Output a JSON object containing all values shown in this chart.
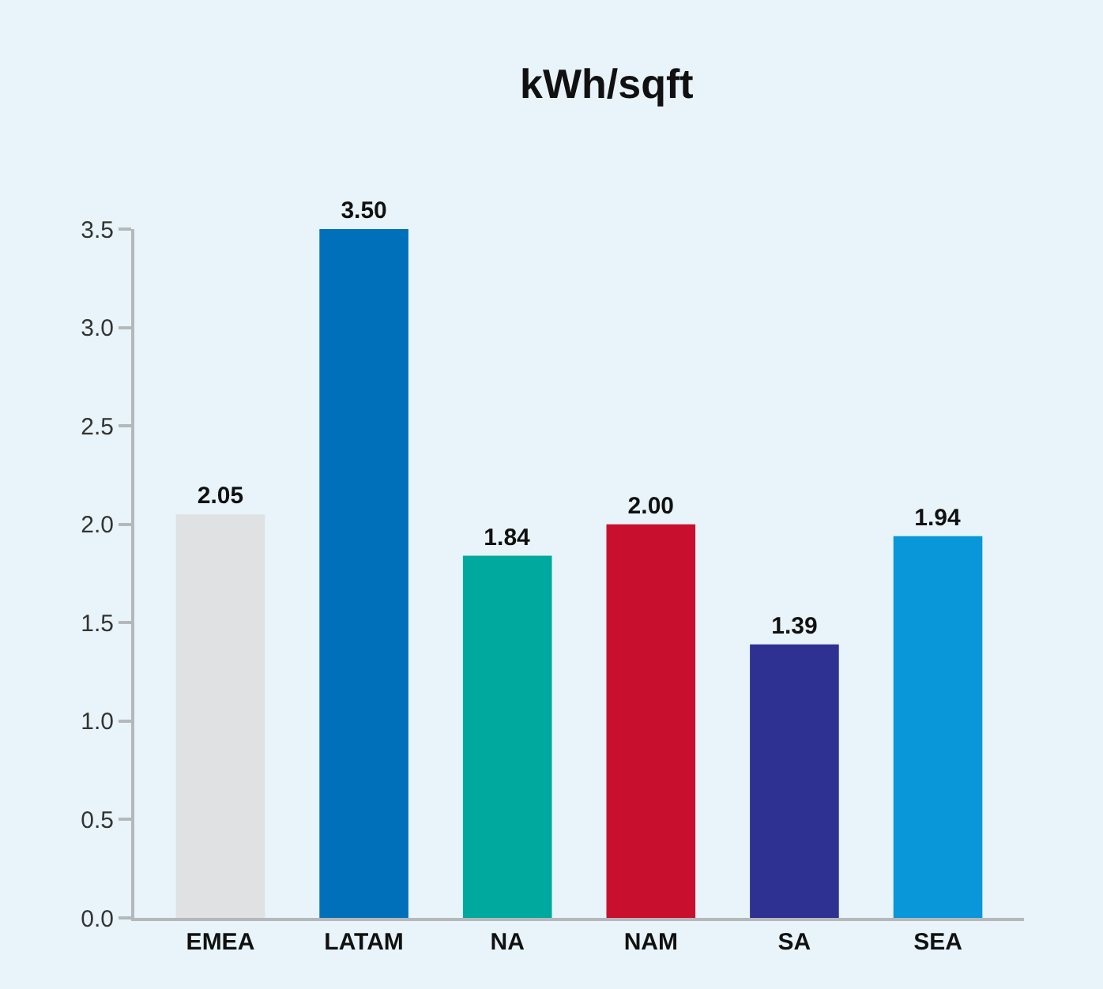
{
  "chart_data": {
    "type": "bar",
    "title": "kWh/sqft",
    "categories": [
      "EMEA",
      "LATAM",
      "NA",
      "NAM",
      "SA",
      "SEA"
    ],
    "values": [
      2.05,
      3.5,
      1.84,
      2.0,
      1.39,
      1.94
    ],
    "value_labels": [
      "2.05",
      "3.50",
      "1.84",
      "2.00",
      "1.39",
      "1.94"
    ],
    "colors": [
      "#e0e1e3",
      "#0070bb",
      "#00a99d",
      "#c8102e",
      "#2e3192",
      "#0a97d9"
    ],
    "ylim": [
      0,
      3.5
    ],
    "yticks": [
      {
        "value": 0,
        "label": "0.0"
      },
      {
        "value": 0.5,
        "label": "0.5"
      },
      {
        "value": 1,
        "label": "1.0"
      },
      {
        "value": 1.5,
        "label": "1.5"
      },
      {
        "value": 2,
        "label": "2.0"
      },
      {
        "value": 2.5,
        "label": "2.5"
      },
      {
        "value": 3,
        "label": "3.0"
      },
      {
        "value": 3.5,
        "label": "3.5"
      }
    ],
    "grid": false
  }
}
